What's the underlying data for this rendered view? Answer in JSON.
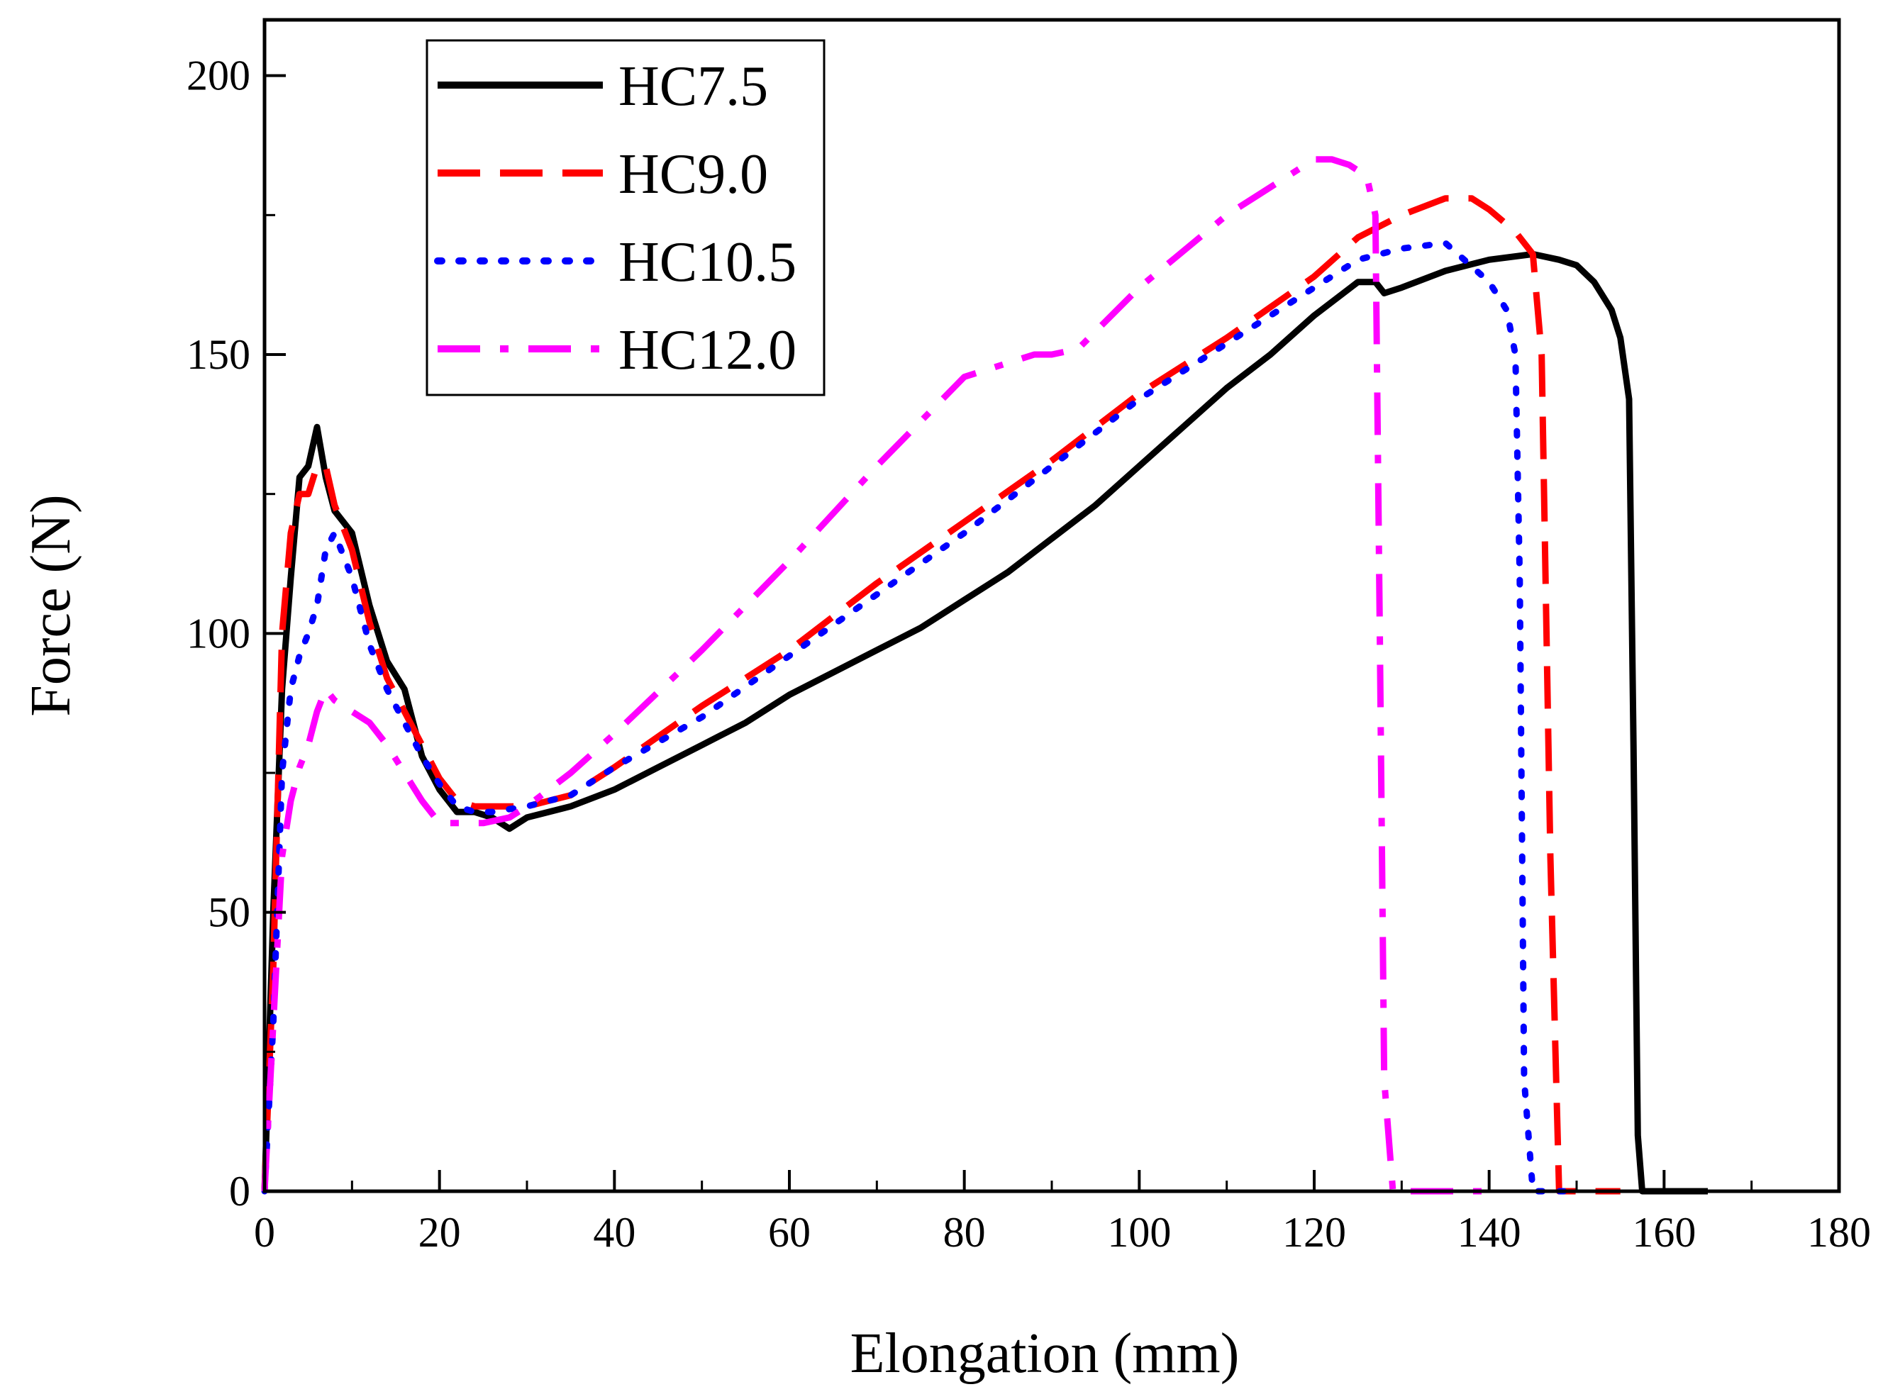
{
  "chart_data": {
    "type": "line",
    "title": "",
    "xlabel": "Elongation (mm)",
    "ylabel": "Force (N)",
    "xlim": [
      0,
      180
    ],
    "ylim": [
      0,
      210
    ],
    "xticks": [
      0,
      20,
      40,
      60,
      80,
      100,
      120,
      140,
      160,
      180
    ],
    "yticks": [
      0,
      50,
      100,
      150,
      200
    ],
    "grid": false,
    "legend_position": "top-left",
    "series": [
      {
        "name": "HC7.5",
        "color": "#000000",
        "dash": "solid",
        "x": [
          0,
          1,
          2,
          3,
          4,
          5,
          6,
          7,
          8,
          10,
          12,
          14,
          16,
          18,
          20,
          22,
          24,
          26,
          28,
          30,
          35,
          40,
          45,
          50,
          55,
          60,
          65,
          70,
          75,
          80,
          85,
          90,
          95,
          100,
          105,
          110,
          115,
          120,
          125,
          127,
          128,
          130,
          135,
          140,
          145,
          148,
          150,
          152,
          154,
          155,
          156,
          156.5,
          157,
          157.5,
          160,
          165
        ],
        "y": [
          0,
          50,
          90,
          110,
          128,
          130,
          137,
          128,
          122,
          118,
          105,
          95,
          90,
          78,
          72,
          68,
          68,
          67,
          65,
          67,
          69,
          72,
          76,
          80,
          84,
          89,
          93,
          97,
          101,
          106,
          111,
          117,
          123,
          130,
          137,
          144,
          150,
          157,
          163,
          163,
          161,
          162,
          165,
          167,
          168,
          167,
          166,
          163,
          158,
          153,
          142,
          80,
          10,
          0,
          0,
          0
        ]
      },
      {
        "name": "HC9.0",
        "color": "#ff0000",
        "dash": "dashed",
        "x": [
          0,
          1,
          2,
          3,
          4,
          5,
          6,
          7,
          8,
          10,
          12,
          14,
          16,
          18,
          20,
          22,
          24,
          26,
          30,
          35,
          40,
          50,
          60,
          70,
          80,
          90,
          100,
          110,
          120,
          125,
          130,
          135,
          138,
          140,
          143,
          145,
          146,
          147,
          148,
          150,
          155
        ],
        "y": [
          0,
          40,
          100,
          118,
          125,
          125,
          130,
          130,
          123,
          115,
          102,
          92,
          86,
          80,
          74,
          70,
          69,
          69,
          69,
          71,
          76,
          87,
          97,
          109,
          120,
          131,
          143,
          153,
          164,
          171,
          175,
          178,
          178,
          176,
          172,
          168,
          150,
          60,
          0,
          0,
          0
        ]
      },
      {
        "name": "HC10.5",
        "color": "#0000ff",
        "dash": "dotted",
        "x": [
          0,
          1,
          2,
          3,
          4,
          5,
          6,
          7,
          8,
          10,
          12,
          14,
          16,
          18,
          20,
          22,
          24,
          26,
          30,
          35,
          40,
          50,
          60,
          70,
          80,
          90,
          100,
          110,
          120,
          125,
          130,
          135,
          140,
          142,
          143,
          143.5,
          144,
          145,
          150
        ],
        "y": [
          0,
          30,
          75,
          90,
          96,
          100,
          105,
          115,
          118,
          110,
          98,
          90,
          84,
          78,
          73,
          69,
          68,
          68,
          69,
          71,
          76,
          85,
          96,
          107,
          118,
          130,
          142,
          152,
          162,
          167,
          169,
          170,
          163,
          158,
          150,
          110,
          20,
          0,
          0
        ]
      },
      {
        "name": "HC12.0",
        "color": "#ff00ff",
        "dash": "dashdot",
        "x": [
          0,
          1,
          2,
          3,
          4,
          5,
          6,
          7,
          8,
          10,
          12,
          14,
          16,
          18,
          20,
          22,
          25,
          28,
          30,
          35,
          40,
          50,
          60,
          70,
          80,
          88,
          90,
          93,
          100,
          110,
          120,
          122,
          124,
          126,
          127,
          127.5,
          128,
          129,
          130,
          135,
          140
        ],
        "y": [
          0,
          30,
          60,
          70,
          76,
          80,
          86,
          90,
          88,
          86,
          84,
          80,
          75,
          70,
          66,
          66,
          66,
          67,
          69,
          75,
          82,
          97,
          113,
          130,
          146,
          150,
          150,
          151,
          162,
          175,
          185,
          185,
          184,
          182,
          175,
          100,
          20,
          0,
          0,
          0,
          0
        ]
      }
    ]
  }
}
